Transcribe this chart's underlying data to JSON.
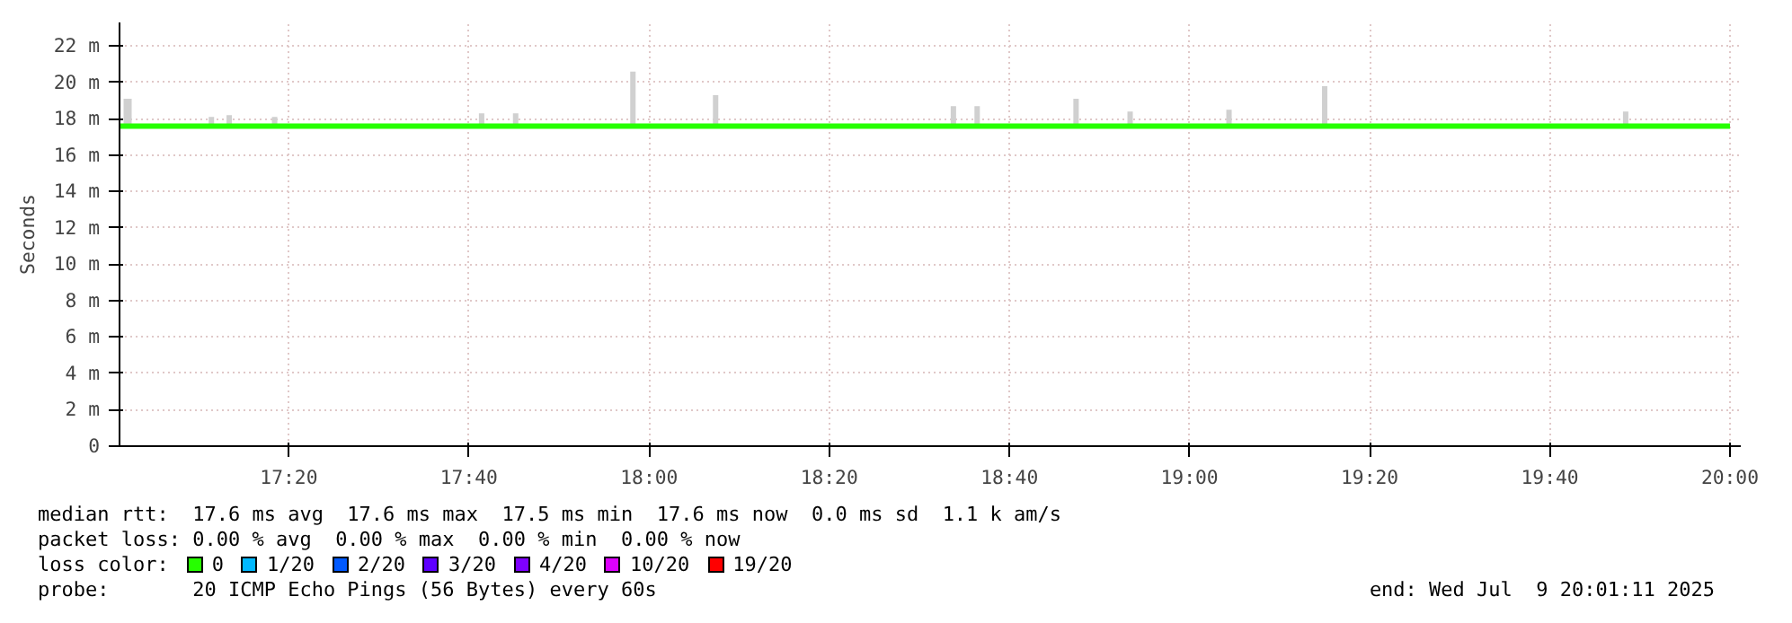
{
  "chart_data": {
    "type": "line",
    "ylabel": "Seconds",
    "legend_title": "loss color:",
    "legend": "bottom",
    "grid": true,
    "xlim": [
      17.02,
      20.02
    ],
    "ylim": [
      0,
      23.3
    ],
    "xticks": [
      {
        "value": 17.3333,
        "label": "17:20"
      },
      {
        "value": 17.6667,
        "label": "17:40"
      },
      {
        "value": 18,
        "label": "18:00"
      },
      {
        "value": 18.3333,
        "label": "18:20"
      },
      {
        "value": 18.6667,
        "label": "18:40"
      },
      {
        "value": 19,
        "label": "19:00"
      },
      {
        "value": 19.3333,
        "label": "19:20"
      },
      {
        "value": 19.6667,
        "label": "19:40"
      },
      {
        "value": 20,
        "label": "20:00"
      }
    ],
    "yticks": [
      0,
      {
        "value": 2,
        "label": "2 m"
      },
      {
        "value": 4,
        "label": "4 m"
      },
      {
        "value": 6,
        "label": "6 m"
      },
      {
        "value": 8,
        "label": "8 m"
      },
      {
        "value": 10,
        "label": "10 m"
      },
      {
        "value": 12,
        "label": "12 m"
      },
      {
        "value": 14,
        "label": "14 m"
      },
      {
        "value": 16,
        "label": "16 m"
      },
      {
        "value": 18,
        "label": "18 m"
      },
      {
        "value": 20,
        "label": "20 m"
      },
      {
        "value": 22,
        "label": "22 m"
      }
    ],
    "series": [
      {
        "name": "0",
        "color": "#26ff00",
        "x": [
          17.02,
          17.035,
          17.05,
          17.18,
          17.19,
          17.2,
          17.213,
          17.223,
          17.233,
          17.297,
          17.307,
          17.317,
          17.68,
          17.69,
          17.7,
          17.743,
          17.753,
          17.763,
          17.96,
          17.97,
          17.98,
          18.113,
          18.123,
          18.133,
          18.553,
          18.563,
          18.573,
          18.597,
          18.607,
          18.617,
          18.78,
          18.79,
          18.8,
          18.88,
          18.89,
          18.9,
          19.063,
          19.073,
          19.083,
          19.24,
          19.25,
          19.26,
          19.797,
          19.807,
          19.817,
          20.0
        ],
        "values": [
          17.6,
          17.6,
          17.6,
          17.6,
          17.6,
          17.6,
          17.6,
          17.6,
          17.6,
          17.6,
          17.6,
          17.6,
          17.6,
          17.6,
          17.6,
          17.6,
          17.6,
          17.6,
          17.6,
          17.6,
          17.6,
          17.6,
          17.6,
          17.6,
          17.6,
          17.6,
          17.6,
          17.6,
          17.6,
          17.6,
          17.6,
          17.6,
          17.6,
          17.6,
          17.6,
          17.6,
          17.6,
          17.6,
          17.6,
          17.6,
          17.6,
          17.6,
          17.6,
          17.6,
          17.6,
          17.6
        ],
        "lower": [
          17.5,
          17.5,
          17.5,
          17.5,
          17.5,
          17.5,
          17.5,
          17.5,
          17.5,
          17.5,
          17.5,
          17.5,
          17.5,
          17.5,
          17.5,
          17.5,
          17.5,
          17.5,
          17.5,
          17.5,
          17.5,
          17.5,
          17.5,
          17.5,
          17.5,
          17.5,
          17.5,
          17.5,
          17.5,
          17.5,
          17.5,
          17.5,
          17.5,
          17.5,
          17.5,
          17.5,
          17.5,
          17.5,
          17.5,
          17.5,
          17.5,
          17.5,
          17.5,
          17.5,
          17.5,
          17.5
        ],
        "upper": [
          17.6,
          19.1,
          17.6,
          17.6,
          18.1,
          17.6,
          17.6,
          18.2,
          17.6,
          17.6,
          18.1,
          17.6,
          17.6,
          18.3,
          17.6,
          17.6,
          18.3,
          17.6,
          17.6,
          20.6,
          17.6,
          17.6,
          19.3,
          17.6,
          17.6,
          18.7,
          17.6,
          17.6,
          18.7,
          17.6,
          17.6,
          19.1,
          17.6,
          17.6,
          18.4,
          17.6,
          17.6,
          18.5,
          17.6,
          17.6,
          19.8,
          17.6,
          17.6,
          18.4,
          17.6,
          17.6
        ]
      },
      {
        "name": "1/20",
        "color": "#00b8ff"
      },
      {
        "name": "2/20",
        "color": "#0059ff"
      },
      {
        "name": "3/20",
        "color": "#5e00ff"
      },
      {
        "name": "4/20",
        "color": "#7e00ff"
      },
      {
        "name": "10/20",
        "color": "#dd00ff"
      },
      {
        "name": "19/20",
        "color": "#ff0000"
      }
    ],
    "annotations": [
      "median rtt:  17.6 ms avg  17.6 ms max  17.5 ms min  17.6 ms now  0.0 ms sd  1.1 k am/s",
      "packet loss: 0.00 % avg  0.00 % max  0.00 % min  0.00 % now",
      "probe:       20 ICMP Echo Pings (56 Bytes) every 60s",
      "end: Wed Jul  9 20:01:11 2025"
    ]
  }
}
